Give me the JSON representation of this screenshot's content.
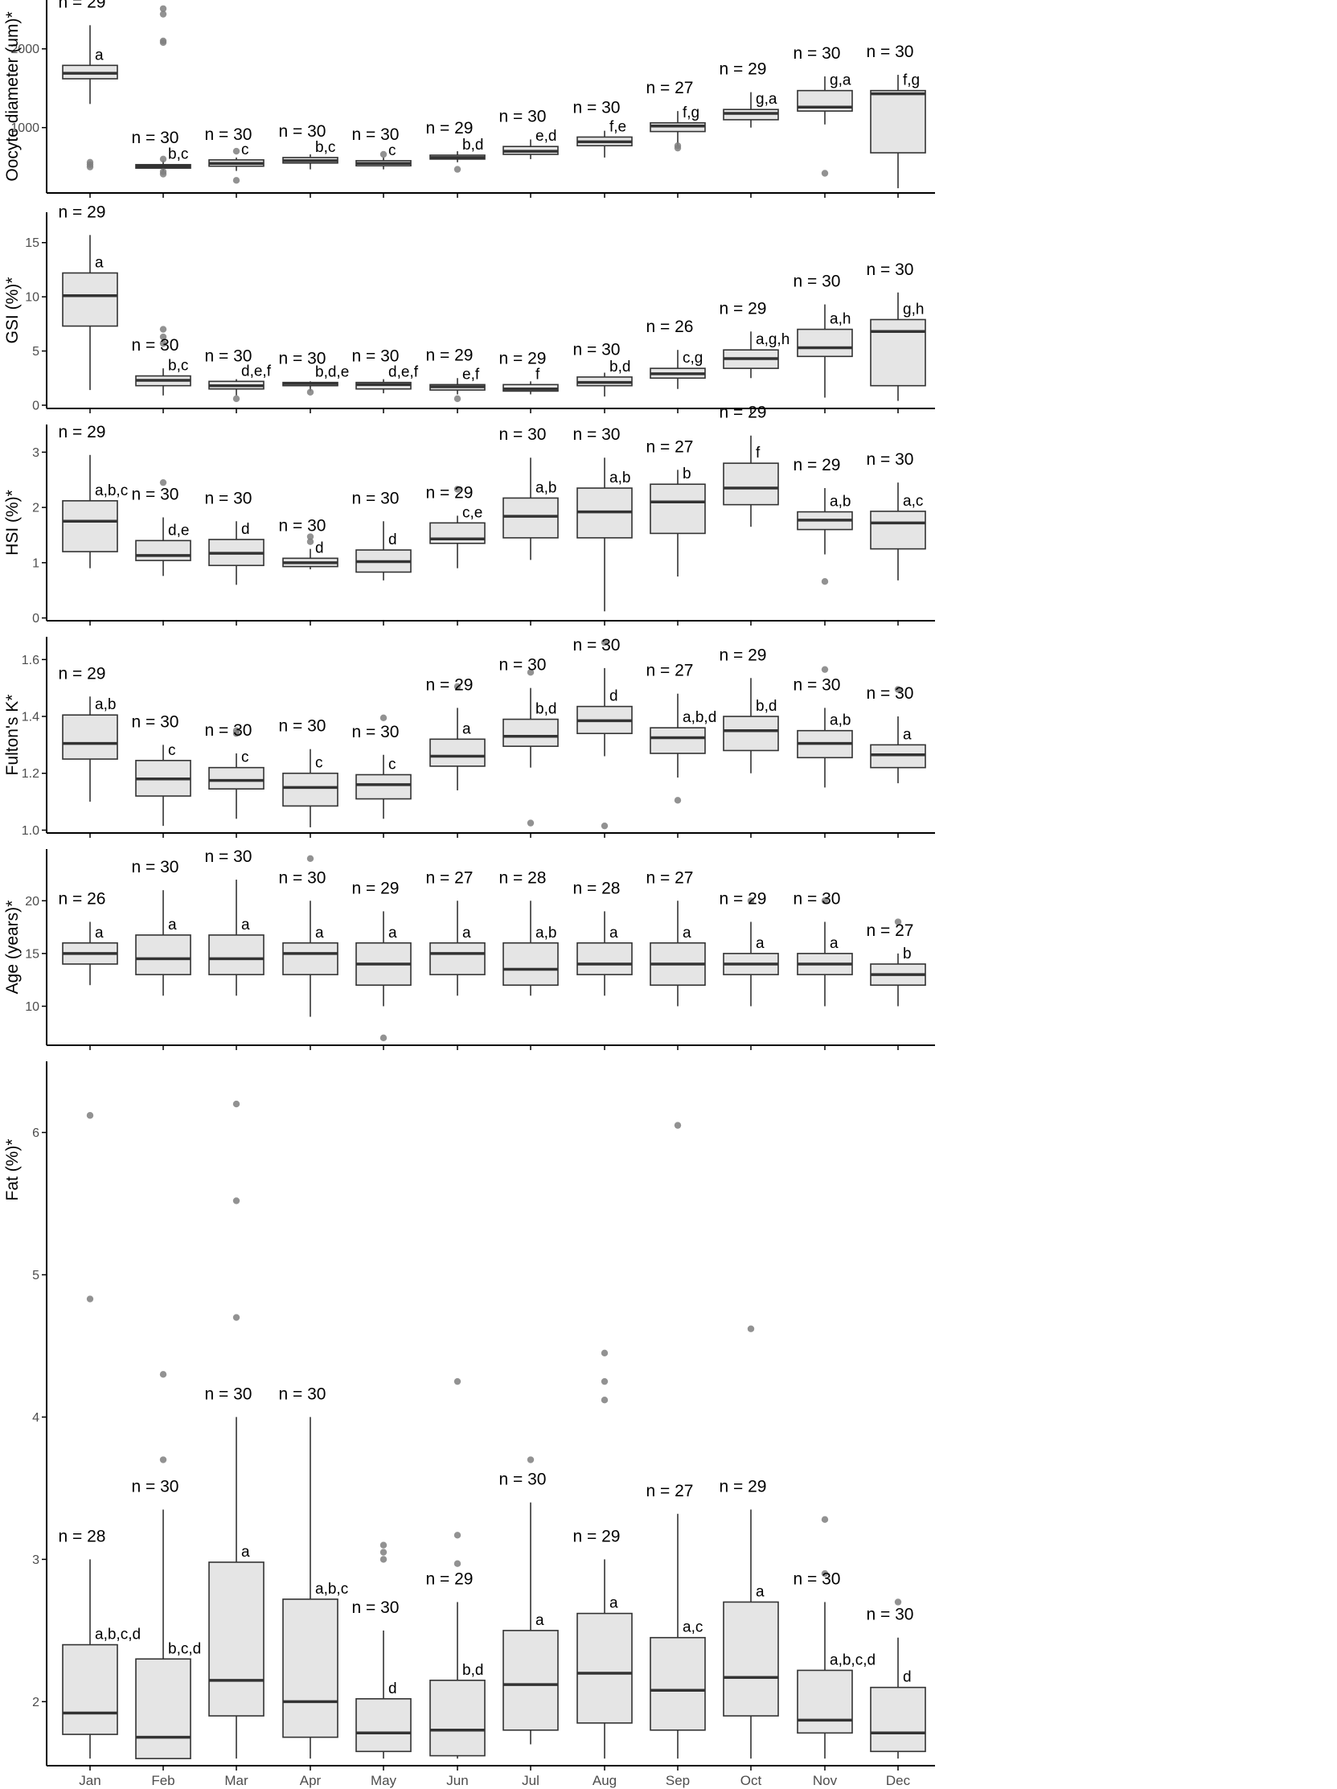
{
  "chart_data": [
    {
      "type": "box",
      "ylabel": "Oocyte diameter (um)*",
      "ylim": [
        170,
        2620
      ],
      "yticks": [
        1000,
        2000
      ],
      "categories": [
        "Jan",
        "Feb",
        "Mar",
        "Apr",
        "May",
        "Jun",
        "Jul",
        "Aug",
        "Sep",
        "Oct",
        "Nov",
        "Dec"
      ],
      "boxes": [
        {
          "q1": 1620,
          "median": 1690,
          "q3": 1790,
          "lo": 1300,
          "hi": 2300,
          "outliers": [
            500,
            530,
            560
          ],
          "n": "n =  29",
          "letter": "a"
        },
        {
          "q1": 485,
          "median": 510,
          "q3": 530,
          "lo": 450,
          "hi": 580,
          "outliers": [
            410,
            440,
            600,
            2080,
            2100,
            2440,
            2510
          ],
          "n": "n =  30",
          "letter": "b,c"
        },
        {
          "q1": 510,
          "median": 545,
          "q3": 590,
          "lo": 450,
          "hi": 620,
          "outliers": [
            330,
            700
          ],
          "n": "n =  30",
          "letter": "c"
        },
        {
          "q1": 550,
          "median": 580,
          "q3": 620,
          "lo": 470,
          "hi": 660,
          "outliers": [],
          "n": "n =  30",
          "letter": "b,c"
        },
        {
          "q1": 515,
          "median": 545,
          "q3": 580,
          "lo": 470,
          "hi": 620,
          "outliers": [
            660
          ],
          "n": "n =  30",
          "letter": "c"
        },
        {
          "q1": 600,
          "median": 620,
          "q3": 650,
          "lo": 560,
          "hi": 700,
          "outliers": [
            470
          ],
          "n": "n =  29",
          "letter": "b,d"
        },
        {
          "q1": 660,
          "median": 700,
          "q3": 760,
          "lo": 600,
          "hi": 850,
          "outliers": [],
          "n": "n =  30",
          "letter": "e,d"
        },
        {
          "q1": 770,
          "median": 820,
          "q3": 880,
          "lo": 620,
          "hi": 960,
          "outliers": [],
          "n": "n =  30",
          "letter": "f,e"
        },
        {
          "q1": 950,
          "median": 1020,
          "q3": 1060,
          "lo": 760,
          "hi": 1210,
          "outliers": [
            740,
            770
          ],
          "n": "n =  27",
          "letter": "f,g"
        },
        {
          "q1": 1100,
          "median": 1180,
          "q3": 1230,
          "lo": 1000,
          "hi": 1450,
          "outliers": [],
          "n": "n =  29",
          "letter": "g,a"
        },
        {
          "q1": 1210,
          "median": 1260,
          "q3": 1470,
          "lo": 1040,
          "hi": 1650,
          "outliers": [
            420
          ],
          "n": "n =  30",
          "letter": "g,a"
        },
        {
          "q1": 680,
          "median": 1430,
          "q3": 1470,
          "lo": 230,
          "hi": 1670,
          "outliers": [],
          "n": "n =  30",
          "letter": "f,g"
        }
      ]
    },
    {
      "type": "box",
      "ylabel": "GSI (%)*",
      "ylim": [
        -0.3,
        17.8
      ],
      "yticks": [
        0,
        5,
        10,
        15
      ],
      "categories": [
        "Jan",
        "Feb",
        "Mar",
        "Apr",
        "May",
        "Jun",
        "Jul",
        "Aug",
        "Sep",
        "Oct",
        "Nov",
        "Dec"
      ],
      "boxes": [
        {
          "q1": 7.3,
          "median": 10.1,
          "q3": 12.2,
          "lo": 1.4,
          "hi": 15.7,
          "outliers": [],
          "n": "n =  29",
          "letter": "a"
        },
        {
          "q1": 1.8,
          "median": 2.3,
          "q3": 2.7,
          "lo": 0.9,
          "hi": 3.4,
          "outliers": [
            5.7,
            6.3,
            7.0
          ],
          "n": "n =  30",
          "letter": "b,c"
        },
        {
          "q1": 1.5,
          "median": 1.8,
          "q3": 2.2,
          "lo": 0.9,
          "hi": 2.4,
          "outliers": [
            0.6
          ],
          "n": "n =  30",
          "letter": "d,e,f"
        },
        {
          "q1": 1.8,
          "median": 2.0,
          "q3": 2.1,
          "lo": 1.3,
          "hi": 2.2,
          "outliers": [
            1.2
          ],
          "n": "n =  30",
          "letter": "b,d,e"
        },
        {
          "q1": 1.5,
          "median": 1.9,
          "q3": 2.1,
          "lo": 1.1,
          "hi": 2.4,
          "outliers": [],
          "n": "n =  30",
          "letter": "d,e,f"
        },
        {
          "q1": 1.4,
          "median": 1.7,
          "q3": 1.9,
          "lo": 1.0,
          "hi": 2.5,
          "outliers": [
            0.6
          ],
          "n": "n =  29",
          "letter": "e,f"
        },
        {
          "q1": 1.3,
          "median": 1.5,
          "q3": 1.9,
          "lo": 1.0,
          "hi": 2.2,
          "outliers": [],
          "n": "n =  29",
          "letter": "f"
        },
        {
          "q1": 1.8,
          "median": 2.1,
          "q3": 2.6,
          "lo": 0.8,
          "hi": 3.0,
          "outliers": [],
          "n": "n =  30",
          "letter": "b,d"
        },
        {
          "q1": 2.5,
          "median": 2.9,
          "q3": 3.4,
          "lo": 1.5,
          "hi": 5.1,
          "outliers": [],
          "n": "n =  26",
          "letter": "c,g"
        },
        {
          "q1": 3.4,
          "median": 4.3,
          "q3": 5.1,
          "lo": 2.5,
          "hi": 6.8,
          "outliers": [],
          "n": "n =  29",
          "letter": "a,g,h"
        },
        {
          "q1": 4.5,
          "median": 5.3,
          "q3": 7.0,
          "lo": 0.7,
          "hi": 9.3,
          "outliers": [],
          "n": "n =  30",
          "letter": "a,h"
        },
        {
          "q1": 1.8,
          "median": 6.8,
          "q3": 7.9,
          "lo": 0.4,
          "hi": 10.4,
          "outliers": [],
          "n": "n =  30",
          "letter": "g,h"
        }
      ]
    },
    {
      "type": "box",
      "ylabel": "HSI (%)*",
      "ylim": [
        -0.05,
        3.5
      ],
      "yticks": [
        0,
        1,
        2,
        3
      ],
      "categories": [
        "Jan",
        "Feb",
        "Mar",
        "Apr",
        "May",
        "Jun",
        "Jul",
        "Aug",
        "Sep",
        "Oct",
        "Nov",
        "Dec"
      ],
      "boxes": [
        {
          "q1": 1.2,
          "median": 1.75,
          "q3": 2.12,
          "lo": 0.9,
          "hi": 2.95,
          "outliers": [],
          "n": "n =  29",
          "letter": "a,b,c"
        },
        {
          "q1": 1.04,
          "median": 1.13,
          "q3": 1.4,
          "lo": 0.76,
          "hi": 1.82,
          "outliers": [
            2.45
          ],
          "n": "n =  30",
          "letter": "d,e"
        },
        {
          "q1": 0.95,
          "median": 1.17,
          "q3": 1.42,
          "lo": 0.6,
          "hi": 1.75,
          "outliers": [],
          "n": "n =  30",
          "letter": "d"
        },
        {
          "q1": 0.93,
          "median": 1.0,
          "q3": 1.08,
          "lo": 0.88,
          "hi": 1.25,
          "outliers": [
            1.38,
            1.47
          ],
          "n": "n =  30",
          "letter": "d"
        },
        {
          "q1": 0.83,
          "median": 1.02,
          "q3": 1.23,
          "lo": 0.68,
          "hi": 1.75,
          "outliers": [],
          "n": "n =  30",
          "letter": "d"
        },
        {
          "q1": 1.35,
          "median": 1.43,
          "q3": 1.72,
          "lo": 0.9,
          "hi": 1.85,
          "outliers": [
            2.33
          ],
          "n": "n =  29",
          "letter": "c,e"
        },
        {
          "q1": 1.45,
          "median": 1.84,
          "q3": 2.17,
          "lo": 1.05,
          "hi": 2.9,
          "outliers": [],
          "n": "n =  30",
          "letter": "a,b"
        },
        {
          "q1": 1.45,
          "median": 1.92,
          "q3": 2.35,
          "lo": 0.12,
          "hi": 2.9,
          "outliers": [],
          "n": "n =  30",
          "letter": "a,b"
        },
        {
          "q1": 1.53,
          "median": 2.1,
          "q3": 2.42,
          "lo": 0.75,
          "hi": 2.68,
          "outliers": [],
          "n": "n =  27",
          "letter": "b"
        },
        {
          "q1": 2.05,
          "median": 2.35,
          "q3": 2.8,
          "lo": 1.65,
          "hi": 3.3,
          "outliers": [],
          "n": "n =  29",
          "letter": "f"
        },
        {
          "q1": 1.6,
          "median": 1.77,
          "q3": 1.92,
          "lo": 1.15,
          "hi": 2.35,
          "outliers": [
            0.66
          ],
          "n": "n =  29",
          "letter": "a,b"
        },
        {
          "q1": 1.25,
          "median": 1.72,
          "q3": 1.93,
          "lo": 0.68,
          "hi": 2.45,
          "outliers": [],
          "n": "n =  30",
          "letter": "a,c"
        }
      ]
    },
    {
      "type": "box",
      "ylabel": "Fulton's K*",
      "ylim": [
        0.99,
        1.68
      ],
      "yticks": [
        1.0,
        1.2,
        1.4,
        1.6
      ],
      "ytick_decimals": 1,
      "categories": [
        "Jan",
        "Feb",
        "Mar",
        "Apr",
        "May",
        "Jun",
        "Jul",
        "Aug",
        "Sep",
        "Oct",
        "Nov",
        "Dec"
      ],
      "boxes": [
        {
          "q1": 1.25,
          "median": 1.305,
          "q3": 1.405,
          "lo": 1.1,
          "hi": 1.47,
          "outliers": [],
          "n": "n =  29",
          "letter": "a,b"
        },
        {
          "q1": 1.12,
          "median": 1.18,
          "q3": 1.245,
          "lo": 1.015,
          "hi": 1.3,
          "outliers": [],
          "n": "n =  30",
          "letter": "c"
        },
        {
          "q1": 1.145,
          "median": 1.175,
          "q3": 1.22,
          "lo": 1.04,
          "hi": 1.27,
          "outliers": [
            1.34,
            1.35
          ],
          "n": "n =  30",
          "letter": "c"
        },
        {
          "q1": 1.085,
          "median": 1.15,
          "q3": 1.2,
          "lo": 1.01,
          "hi": 1.285,
          "outliers": [],
          "n": "n =  30",
          "letter": "c"
        },
        {
          "q1": 1.11,
          "median": 1.16,
          "q3": 1.195,
          "lo": 1.04,
          "hi": 1.265,
          "outliers": [
            1.395
          ],
          "n": "n =  30",
          "letter": "c"
        },
        {
          "q1": 1.225,
          "median": 1.26,
          "q3": 1.32,
          "lo": 1.14,
          "hi": 1.43,
          "outliers": [
            1.505
          ],
          "n": "n =  29",
          "letter": "a"
        },
        {
          "q1": 1.295,
          "median": 1.33,
          "q3": 1.39,
          "lo": 1.22,
          "hi": 1.5,
          "outliers": [
            1.025,
            1.555
          ],
          "n": "n =  30",
          "letter": "b,d"
        },
        {
          "q1": 1.34,
          "median": 1.385,
          "q3": 1.435,
          "lo": 1.26,
          "hi": 1.57,
          "outliers": [
            1.015,
            1.66
          ],
          "n": "n =  30",
          "letter": "d"
        },
        {
          "q1": 1.27,
          "median": 1.325,
          "q3": 1.36,
          "lo": 1.185,
          "hi": 1.48,
          "outliers": [
            1.105
          ],
          "n": "n =  27",
          "letter": "a,b,d"
        },
        {
          "q1": 1.28,
          "median": 1.35,
          "q3": 1.4,
          "lo": 1.2,
          "hi": 1.535,
          "outliers": [],
          "n": "n =  29",
          "letter": "b,d"
        },
        {
          "q1": 1.255,
          "median": 1.305,
          "q3": 1.35,
          "lo": 1.15,
          "hi": 1.43,
          "outliers": [
            1.565
          ],
          "n": "n =  30",
          "letter": "a,b"
        },
        {
          "q1": 1.22,
          "median": 1.265,
          "q3": 1.3,
          "lo": 1.165,
          "hi": 1.4,
          "outliers": [
            1.495
          ],
          "n": "n =  30",
          "letter": "a"
        }
      ]
    },
    {
      "type": "box",
      "ylabel": "Age (years)*",
      "ylim": [
        6.3,
        24.9
      ],
      "yticks": [
        10,
        15,
        20
      ],
      "categories": [
        "Jan",
        "Feb",
        "Mar",
        "Apr",
        "May",
        "Jun",
        "Jul",
        "Aug",
        "Sep",
        "Oct",
        "Nov",
        "Dec"
      ],
      "boxes": [
        {
          "q1": 14,
          "median": 15,
          "q3": 16,
          "lo": 12,
          "hi": 18,
          "outliers": [],
          "n": "n =  26",
          "letter": "a"
        },
        {
          "q1": 13,
          "median": 14.5,
          "q3": 16.75,
          "lo": 11,
          "hi": 21,
          "outliers": [],
          "n": "n =  30",
          "letter": "a"
        },
        {
          "q1": 13,
          "median": 14.5,
          "q3": 16.75,
          "lo": 11,
          "hi": 22,
          "outliers": [],
          "n": "n =  30",
          "letter": "a"
        },
        {
          "q1": 13,
          "median": 15,
          "q3": 16,
          "lo": 9,
          "hi": 20,
          "outliers": [
            24
          ],
          "n": "n =  30",
          "letter": "a"
        },
        {
          "q1": 12,
          "median": 14,
          "q3": 16,
          "lo": 10,
          "hi": 19,
          "outliers": [
            7
          ],
          "n": "n =  29",
          "letter": "a"
        },
        {
          "q1": 13,
          "median": 15,
          "q3": 16,
          "lo": 11,
          "hi": 20,
          "outliers": [],
          "n": "n =  27",
          "letter": "a"
        },
        {
          "q1": 12,
          "median": 13.5,
          "q3": 16,
          "lo": 11,
          "hi": 20,
          "outliers": [],
          "n": "n =  28",
          "letter": "a,b"
        },
        {
          "q1": 13,
          "median": 14,
          "q3": 16,
          "lo": 11,
          "hi": 19,
          "outliers": [],
          "n": "n =  28",
          "letter": "a"
        },
        {
          "q1": 12,
          "median": 14,
          "q3": 16,
          "lo": 10,
          "hi": 20,
          "outliers": [],
          "n": "n =  27",
          "letter": "a"
        },
        {
          "q1": 13,
          "median": 14,
          "q3": 15,
          "lo": 10,
          "hi": 18,
          "outliers": [
            20
          ],
          "n": "n =  29",
          "letter": "a"
        },
        {
          "q1": 13,
          "median": 14,
          "q3": 15,
          "lo": 10,
          "hi": 18,
          "outliers": [
            20
          ],
          "n": "n =  30",
          "letter": "a"
        },
        {
          "q1": 12,
          "median": 13,
          "q3": 14,
          "lo": 10,
          "hi": 15,
          "outliers": [
            18
          ],
          "n": "n =  27",
          "letter": "b"
        }
      ]
    },
    {
      "type": "box",
      "ylabel": "Fat (%)*",
      "ylim": [
        1.55,
        6.5
      ],
      "yticks": [
        2,
        3,
        4,
        5,
        6
      ],
      "categories": [
        "Jan",
        "Feb",
        "Mar",
        "Apr",
        "May",
        "Jun",
        "Jul",
        "Aug",
        "Sep",
        "Oct",
        "Nov",
        "Dec"
      ],
      "boxes": [
        {
          "q1": 1.77,
          "median": 1.92,
          "q3": 2.4,
          "lo": 1.6,
          "hi": 3.0,
          "outliers": [
            4.83,
            6.12
          ],
          "n": "n =  28",
          "letter": "a,b,c,d"
        },
        {
          "q1": 1.6,
          "median": 1.75,
          "q3": 2.3,
          "lo": 1.6,
          "hi": 3.35,
          "outliers": [
            3.7,
            4.3
          ],
          "n": "n =  30",
          "letter": "b,c,d"
        },
        {
          "q1": 1.9,
          "median": 2.15,
          "q3": 2.98,
          "lo": 1.6,
          "hi": 4.0,
          "outliers": [
            4.7,
            5.52,
            6.2
          ],
          "n": "n =  30",
          "letter": "a"
        },
        {
          "q1": 1.75,
          "median": 2.0,
          "q3": 2.72,
          "lo": 1.6,
          "hi": 4.0,
          "outliers": [],
          "n": "n =  30",
          "letter": "a,b,c"
        },
        {
          "q1": 1.65,
          "median": 1.78,
          "q3": 2.02,
          "lo": 1.6,
          "hi": 2.5,
          "outliers": [
            3.0,
            3.05,
            3.1
          ],
          "n": "n =  30",
          "letter": "d"
        },
        {
          "q1": 1.62,
          "median": 1.8,
          "q3": 2.15,
          "lo": 1.6,
          "hi": 2.7,
          "outliers": [
            2.97,
            3.17,
            4.25
          ],
          "n": "n =  29",
          "letter": "b,d"
        },
        {
          "q1": 1.8,
          "median": 2.12,
          "q3": 2.5,
          "lo": 1.7,
          "hi": 3.4,
          "outliers": [
            3.7
          ],
          "n": "n =  30",
          "letter": "a"
        },
        {
          "q1": 1.85,
          "median": 2.2,
          "q3": 2.62,
          "lo": 1.6,
          "hi": 3.0,
          "outliers": [
            4.12,
            4.25,
            4.45
          ],
          "n": "n =  29",
          "letter": "a"
        },
        {
          "q1": 1.8,
          "median": 2.08,
          "q3": 2.45,
          "lo": 1.6,
          "hi": 3.32,
          "outliers": [
            6.05
          ],
          "n": "n =  27",
          "letter": "a,c"
        },
        {
          "q1": 1.9,
          "median": 2.17,
          "q3": 2.7,
          "lo": 1.6,
          "hi": 3.35,
          "outliers": [
            4.62
          ],
          "n": "n =  29",
          "letter": "a"
        },
        {
          "q1": 1.78,
          "median": 1.87,
          "q3": 2.22,
          "lo": 1.6,
          "hi": 2.7,
          "outliers": [
            2.9,
            3.28
          ],
          "n": "n =  30",
          "letter": "a,b,c,d"
        },
        {
          "q1": 1.65,
          "median": 1.78,
          "q3": 2.1,
          "lo": 1.6,
          "hi": 2.45,
          "outliers": [
            2.7
          ],
          "n": "n =  30",
          "letter": "d"
        }
      ]
    }
  ]
}
